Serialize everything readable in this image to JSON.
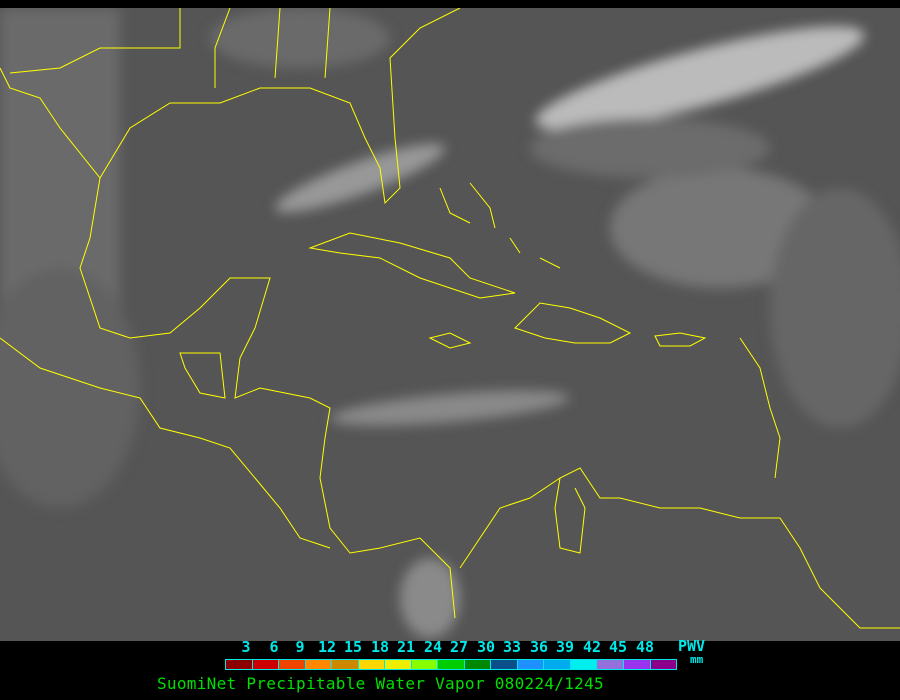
{
  "legend": {
    "ticks": [
      "3",
      "6",
      "9",
      "12",
      "15",
      "18",
      "21",
      "24",
      "27",
      "30",
      "33",
      "36",
      "39",
      "42",
      "45",
      "48"
    ],
    "unit_label": "PWV",
    "unit": "mm",
    "colors": [
      "#8b0000",
      "#cc0000",
      "#ee4400",
      "#ff8800",
      "#cc8800",
      "#ffd700",
      "#eeee00",
      "#88ff00",
      "#00cc00",
      "#008800",
      "#0a4f8a",
      "#1e90ff",
      "#00aaee",
      "#00eeee",
      "#9370db",
      "#9933ee",
      "#8b008b"
    ]
  },
  "title": "SuomiNet Precipitable Water Vapor 080224/1245",
  "map": {
    "coastline_color": "#ffff00",
    "background_color": "#505050"
  }
}
